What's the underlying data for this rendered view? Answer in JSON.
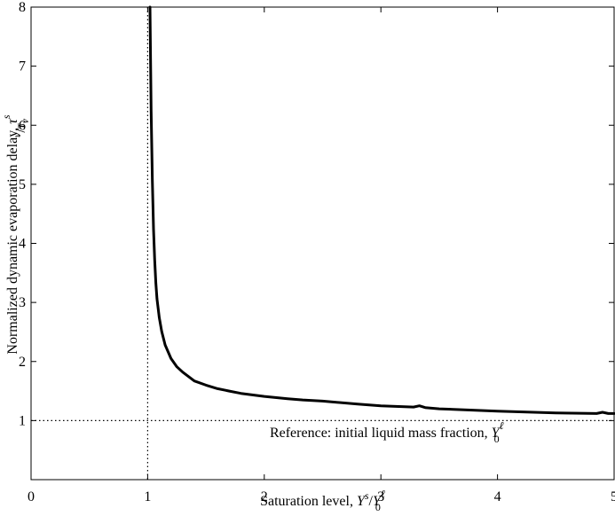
{
  "chart_data": {
    "type": "line",
    "title": "",
    "xlabel": {
      "prefix": "Saturation level, ",
      "num_var": "Y",
      "num_sup": "s",
      "slash": "/",
      "den_var": "Y",
      "den_sup": "ℓ",
      "den_sub": "0"
    },
    "ylabel": {
      "prefix": "Normalized dynamic evaporation delay, ",
      "num_var": "τ",
      "num_sub": "v",
      "num_sup": "s",
      "slash": "/",
      "den_var": "τ",
      "den_sub": "v"
    },
    "xlim": [
      0,
      5
    ],
    "ylim": [
      0,
      8
    ],
    "xticks": [
      0,
      1,
      2,
      3,
      4,
      5
    ],
    "yticks": [
      1,
      2,
      3,
      4,
      5,
      6,
      7,
      8
    ],
    "grid": false,
    "reference_lines": [
      {
        "orientation": "vertical",
        "value": 1,
        "style": "dotted"
      },
      {
        "orientation": "horizontal",
        "value": 1,
        "style": "dotted"
      }
    ],
    "annotation": {
      "prefix": "Reference: initial liquid mass fraction, ",
      "var": "Y",
      "sup": "ℓ",
      "sub": "0",
      "at": [
        3.05,
        0.72
      ]
    },
    "series": [
      {
        "x": [
          1.02,
          1.025,
          1.03,
          1.04,
          1.05,
          1.06,
          1.07,
          1.08,
          1.1,
          1.12,
          1.15,
          1.2,
          1.25,
          1.3,
          1.4,
          1.5,
          1.6,
          1.7,
          1.8,
          2.0,
          2.2,
          2.33,
          2.5,
          2.8,
          3.0,
          3.28,
          3.33,
          3.38,
          3.5,
          4.0,
          4.5,
          4.85,
          4.9,
          4.95,
          5.0
        ],
        "y": [
          8.0,
          7.05,
          6.24,
          5.05,
          4.24,
          3.72,
          3.33,
          3.06,
          2.74,
          2.51,
          2.28,
          2.05,
          1.91,
          1.82,
          1.67,
          1.6,
          1.54,
          1.5,
          1.46,
          1.41,
          1.37,
          1.35,
          1.33,
          1.28,
          1.25,
          1.23,
          1.25,
          1.22,
          1.2,
          1.16,
          1.13,
          1.12,
          1.14,
          1.12,
          1.12
        ]
      }
    ]
  }
}
